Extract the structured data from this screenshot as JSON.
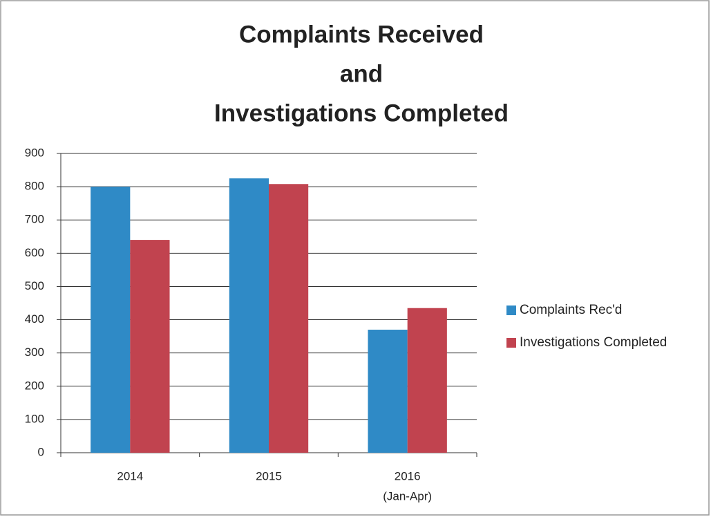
{
  "chart_data": {
    "type": "bar",
    "title": [
      "Complaints Received",
      "and",
      "Investigations Completed"
    ],
    "categories": [
      [
        "2014"
      ],
      [
        "2015"
      ],
      [
        "2016",
        "(Jan-Apr)"
      ]
    ],
    "series": [
      {
        "name": "Complaints Rec'd",
        "color": "#2f8ac6",
        "values": [
          800,
          825,
          370
        ]
      },
      {
        "name": "Investigations Completed",
        "color": "#c1434f",
        "values": [
          640,
          808,
          435
        ]
      }
    ],
    "ylim": [
      0,
      900
    ],
    "yticks": [
      0,
      100,
      200,
      300,
      400,
      500,
      600,
      700,
      800,
      900
    ],
    "grid": true,
    "legend": "right"
  }
}
